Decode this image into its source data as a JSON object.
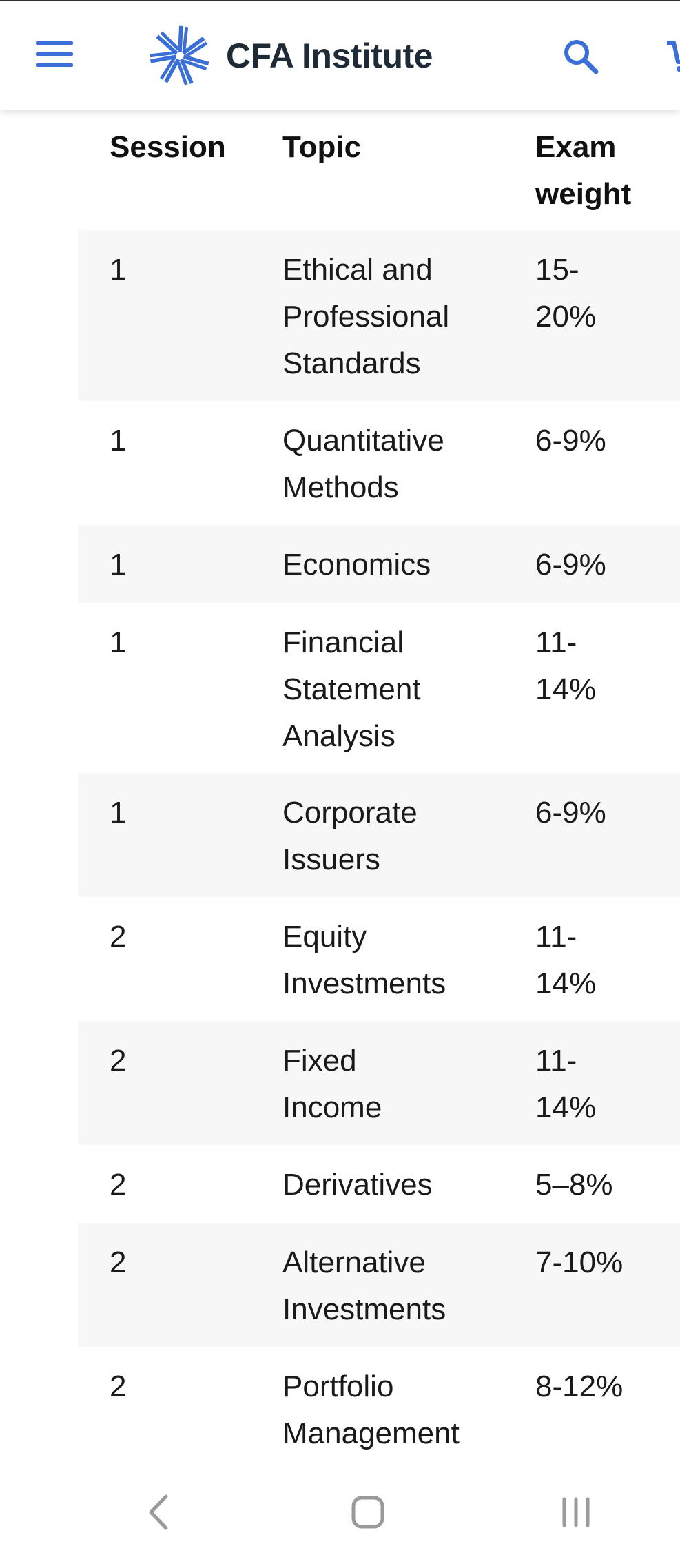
{
  "header": {
    "brand": "CFA Institute",
    "icons": {
      "menu": "hamburger-menu-icon",
      "logo": "cfa-logo-icon",
      "search": "search-icon",
      "cart": "cart-icon"
    }
  },
  "table": {
    "headers": {
      "session": "Session",
      "topic": "Topic",
      "weight": "Exam weight"
    },
    "rows": [
      {
        "session": "1",
        "topic": "Ethical and Professional Standards",
        "weight": "15-20%"
      },
      {
        "session": "1",
        "topic": "Quantitative Methods",
        "weight": "6-9%"
      },
      {
        "session": "1",
        "topic": "Economics",
        "weight": "6-9%"
      },
      {
        "session": "1",
        "topic": "Financial Statement Analysis",
        "weight": "11-14%"
      },
      {
        "session": "1",
        "topic": "Corporate Issuers",
        "weight": "6-9%"
      },
      {
        "session": "2",
        "topic": "Equity Investments",
        "weight": "11-14%"
      },
      {
        "session": "2",
        "topic": "Fixed Income",
        "weight": "11-14%"
      },
      {
        "session": "2",
        "topic": "Derivatives",
        "weight": "5–8%"
      },
      {
        "session": "2",
        "topic": "Alternative Investments",
        "weight": "7-10%"
      },
      {
        "session": "2",
        "topic": "Portfolio Management",
        "weight": "8-12%"
      }
    ]
  },
  "navbar": {
    "icons": {
      "back": "back-icon",
      "home": "home-icon",
      "recents": "recents-icon"
    }
  },
  "colors": {
    "brand_blue": "#3a6fd8",
    "row_shade": "#f7f7f7",
    "nav_gray": "#9a9a9a"
  }
}
